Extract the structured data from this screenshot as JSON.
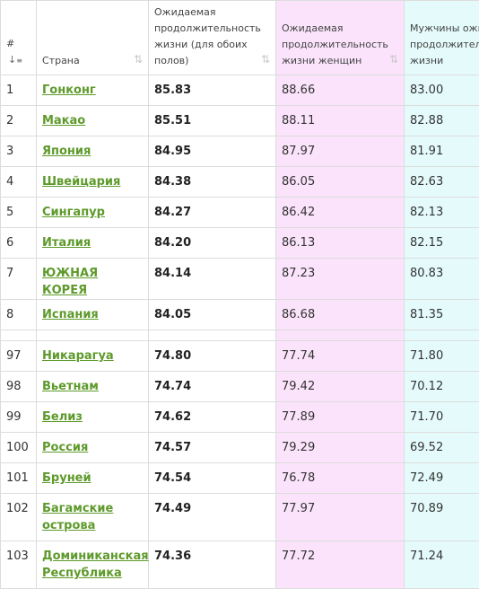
{
  "header": {
    "num": "#",
    "num_sort_icon": "sort-numeric-icon",
    "country": "Страна",
    "both": "Ожидаемая продолжительность жизни (для обоих полов)",
    "female": "Ожидаемая продолжительность жизни женщин",
    "male": "Мужчины ожидаемая продолжительность жизни",
    "sort_icon_glyph": "⇅"
  },
  "rows": [
    {
      "num": "1",
      "country": "Гонконг",
      "both": "85.83",
      "female": "88.66",
      "male": "83.00"
    },
    {
      "num": "2",
      "country": "Макао",
      "both": "85.51",
      "female": "88.11",
      "male": "82.88"
    },
    {
      "num": "3",
      "country": "Япония",
      "both": "84.95",
      "female": "87.97",
      "male": "81.91"
    },
    {
      "num": "4",
      "country": "Швейцария",
      "both": "84.38",
      "female": "86.05",
      "male": "82.63"
    },
    {
      "num": "5",
      "country": "Сингапур",
      "both": "84.27",
      "female": "86.42",
      "male": "82.13"
    },
    {
      "num": "6",
      "country": "Италия",
      "both": "84.20",
      "female": "86.13",
      "male": "82.15"
    },
    {
      "num": "7",
      "country": "ЮЖНАЯ КОРЕЯ",
      "both": "84.14",
      "female": "87.23",
      "male": "80.83"
    },
    {
      "num": "8",
      "country": "Испания",
      "both": "84.05",
      "female": "86.68",
      "male": "81.35"
    }
  ],
  "rows_after_gap": [
    {
      "num": "97",
      "country": "Никарагуа",
      "both": "74.80",
      "female": "77.74",
      "male": "71.80"
    },
    {
      "num": "98",
      "country": "Вьетнам",
      "both": "74.74",
      "female": "79.42",
      "male": "70.12"
    },
    {
      "num": "99",
      "country": "Белиз",
      "both": "74.62",
      "female": "77.89",
      "male": "71.70"
    },
    {
      "num": "100",
      "country": "Россия",
      "both": "74.57",
      "female": "79.29",
      "male": "69.52"
    },
    {
      "num": "101",
      "country": "Бруней",
      "both": "74.54",
      "female": "76.78",
      "male": "72.49"
    },
    {
      "num": "102",
      "country": "Багамские острова",
      "both": "74.49",
      "female": "77.97",
      "male": "70.89"
    },
    {
      "num": "103",
      "country": "Доминиканская Республика",
      "both": "74.36",
      "female": "77.72",
      "male": "71.24"
    }
  ]
}
